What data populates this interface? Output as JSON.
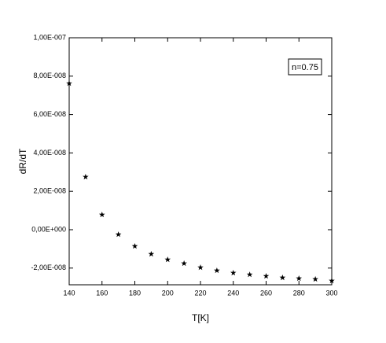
{
  "chart_data": {
    "type": "scatter",
    "x_label": "T[K]",
    "y_label": "dR/dT",
    "annotation": "n=0.75",
    "marker": "star",
    "color": "#000000",
    "x": [
      140,
      150,
      160,
      170,
      180,
      190,
      200,
      210,
      220,
      230,
      240,
      250,
      260,
      270,
      280,
      290,
      300
    ],
    "values": [
      7.62e-08,
      2.75e-08,
      7.8e-09,
      -2.5e-09,
      -8.6e-09,
      -1.27e-08,
      -1.56e-08,
      -1.76e-08,
      -1.97e-08,
      -2.13e-08,
      -2.25e-08,
      -2.34e-08,
      -2.42e-08,
      -2.5e-08,
      -2.54e-08,
      -2.58e-08,
      -2.66e-08
    ],
    "xlim": [
      140,
      300
    ],
    "xticks": [
      140,
      160,
      180,
      200,
      220,
      240,
      260,
      280,
      300
    ],
    "ylim": [
      -2.87e-08,
      1e-07
    ],
    "yticks": [
      {
        "value": -2e-08,
        "label": "-2,00E-008"
      },
      {
        "value": 0,
        "label": "0,00E+000"
      },
      {
        "value": 2e-08,
        "label": "2,00E-008"
      },
      {
        "value": 4e-08,
        "label": "4,00E-008"
      },
      {
        "value": 6e-08,
        "label": "6,00E-008"
      },
      {
        "value": 8e-08,
        "label": "8,00E-008"
      },
      {
        "value": 1e-07,
        "label": "1,00E-007"
      }
    ]
  }
}
